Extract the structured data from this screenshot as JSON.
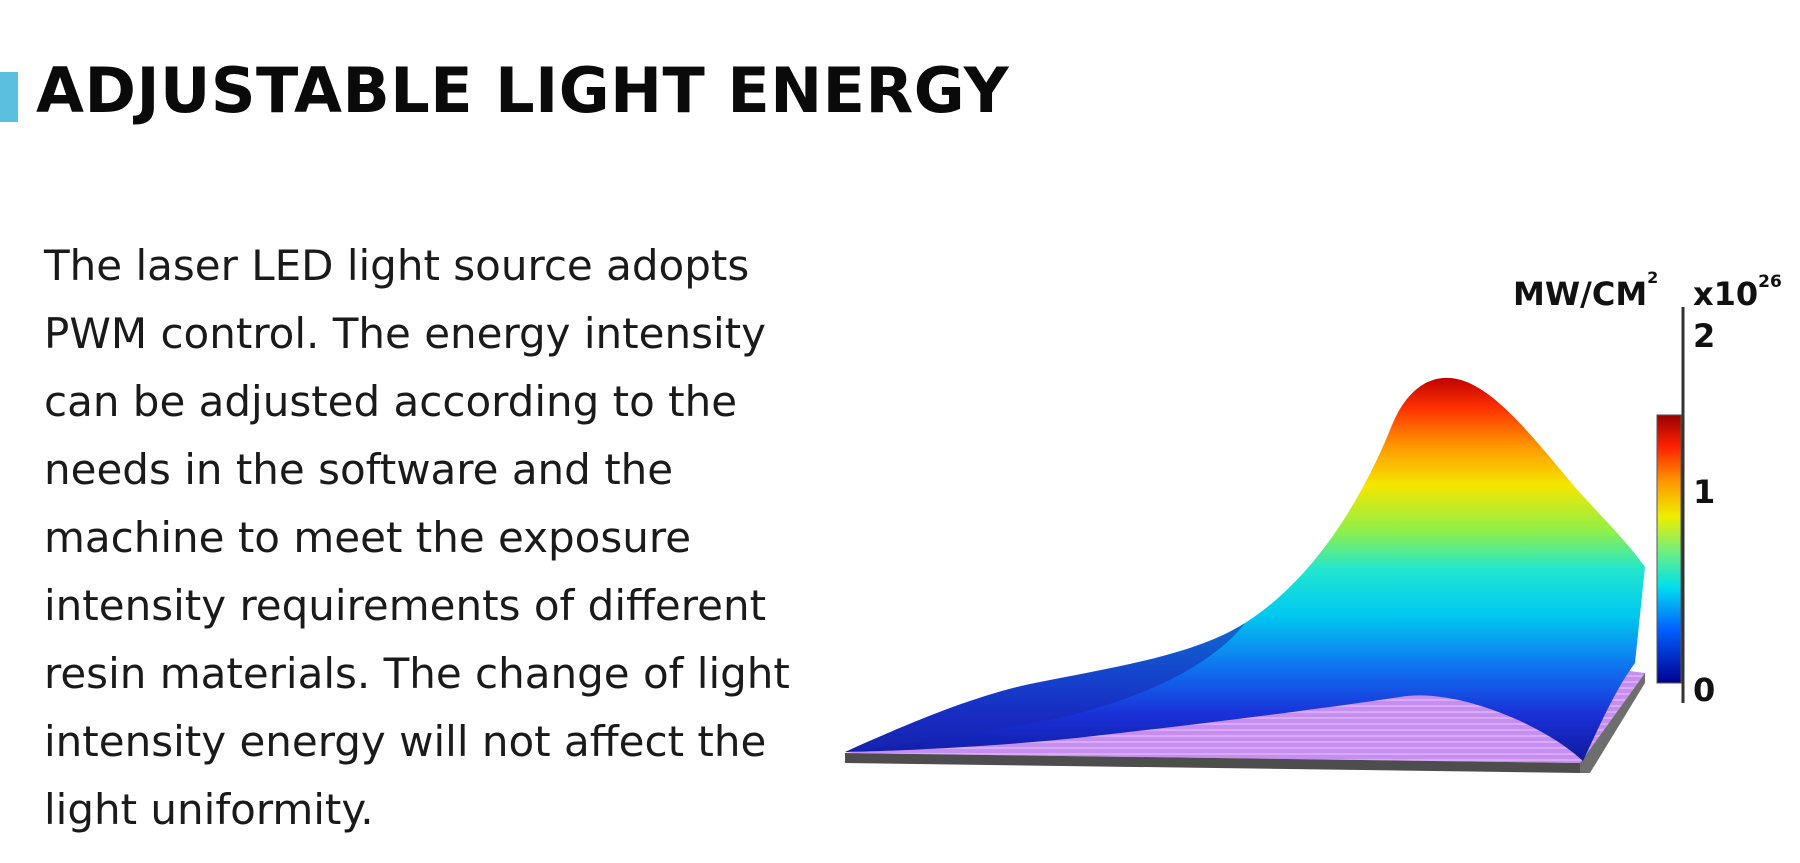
{
  "header": {
    "title": "ADJUSTABLE LIGHT ENERGY",
    "accent_color": "#5bc0e0"
  },
  "description": "The laser LED light source adopts PWM control. The energy intensity can be adjusted according to the needs in the software and the machine to meet the exposure intensity requirements of different resin materials. The change of light intensity energy will not affect the light uniformity.",
  "chart": {
    "unit_label": "MW/CM",
    "unit_superscript": "2",
    "multiplier_label": "x10",
    "multiplier_exponent": "26",
    "ticks": [
      "2",
      "1",
      "0"
    ]
  }
}
